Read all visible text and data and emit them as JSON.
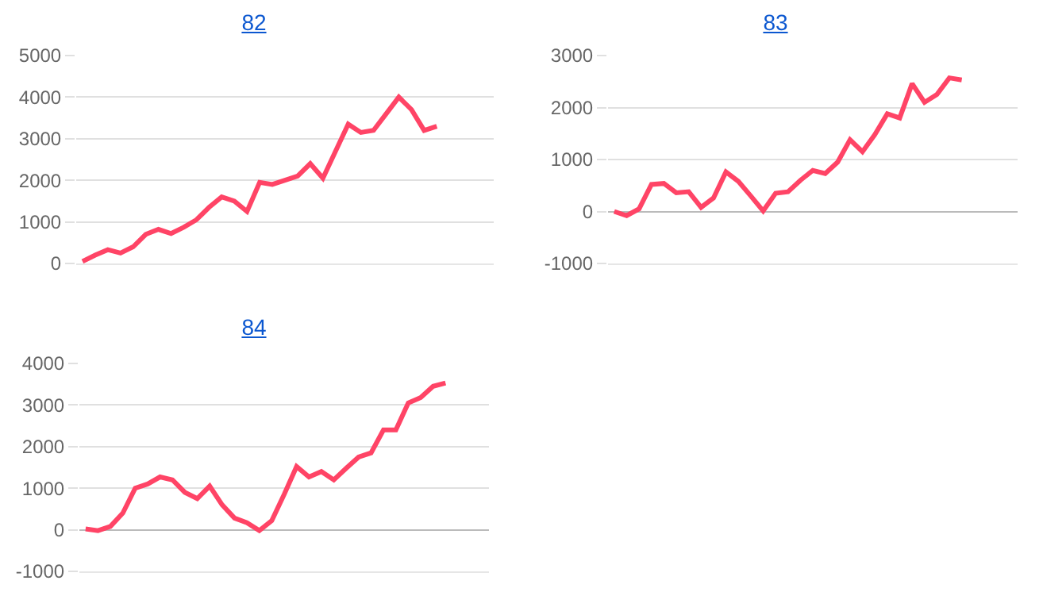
{
  "chart_data": [
    {
      "type": "line",
      "title": "82",
      "categories": [
        null,
        null,
        null,
        null,
        null,
        null,
        null,
        null,
        null,
        null,
        null,
        null,
        null,
        null,
        null,
        null,
        null,
        null,
        null,
        null,
        null,
        null,
        null,
        null,
        null,
        null,
        null,
        null,
        null,
        null,
        null,
        null,
        null
      ],
      "series": [
        {
          "color": "#ff4466",
          "values": [
            50,
            200,
            330,
            250,
            400,
            700,
            820,
            720,
            870,
            1050,
            1350,
            1600,
            1500,
            1250,
            1950,
            1900,
            2000,
            2100,
            2400,
            2050,
            2700,
            3350,
            3150,
            3200,
            3600,
            4000,
            3700,
            3200,
            3300,
            null,
            null,
            null,
            null
          ]
        }
      ],
      "ylim": [
        0,
        5000
      ],
      "yticks": [
        0,
        1000,
        2000,
        3000,
        4000,
        5000
      ],
      "grid": "y",
      "marker": "none",
      "line_style": "solid"
    },
    {
      "type": "line",
      "title": "83",
      "categories": [
        null,
        null,
        null,
        null,
        null,
        null,
        null,
        null,
        null,
        null,
        null,
        null,
        null,
        null,
        null,
        null,
        null,
        null,
        null,
        null,
        null,
        null,
        null,
        null,
        null,
        null,
        null,
        null,
        null,
        null,
        null,
        null,
        null
      ],
      "series": [
        {
          "color": "#ff4466",
          "values": [
            0,
            -80,
            50,
            520,
            540,
            360,
            380,
            80,
            260,
            760,
            580,
            300,
            10,
            350,
            380,
            600,
            790,
            730,
            950,
            1380,
            1150,
            1480,
            1880,
            1800,
            2460,
            2100,
            2250,
            2570,
            2530,
            null,
            null,
            null,
            null
          ]
        }
      ],
      "ylim": [
        -1000,
        3000
      ],
      "yticks": [
        -1000,
        0,
        1000,
        2000,
        3000
      ],
      "grid": "y",
      "marker": "none",
      "line_style": "solid"
    },
    {
      "type": "line",
      "title": "84",
      "categories": [
        null,
        null,
        null,
        null,
        null,
        null,
        null,
        null,
        null,
        null,
        null,
        null,
        null,
        null,
        null,
        null,
        null,
        null,
        null,
        null,
        null,
        null,
        null,
        null,
        null,
        null,
        null,
        null,
        null,
        null,
        null,
        null,
        null
      ],
      "series": [
        {
          "color": "#ff4466",
          "values": [
            20,
            -20,
            80,
            400,
            1000,
            1100,
            1270,
            1200,
            900,
            750,
            1050,
            600,
            280,
            170,
            -20,
            220,
            850,
            1520,
            1270,
            1400,
            1200,
            1480,
            1750,
            1850,
            2400,
            2400,
            3050,
            3180,
            3450,
            3530,
            null,
            null,
            null
          ]
        }
      ],
      "ylim": [
        -1000,
        4000
      ],
      "yticks": [
        -1000,
        0,
        1000,
        2000,
        3000,
        4000
      ],
      "grid": "y",
      "marker": "none",
      "line_style": "solid"
    }
  ]
}
